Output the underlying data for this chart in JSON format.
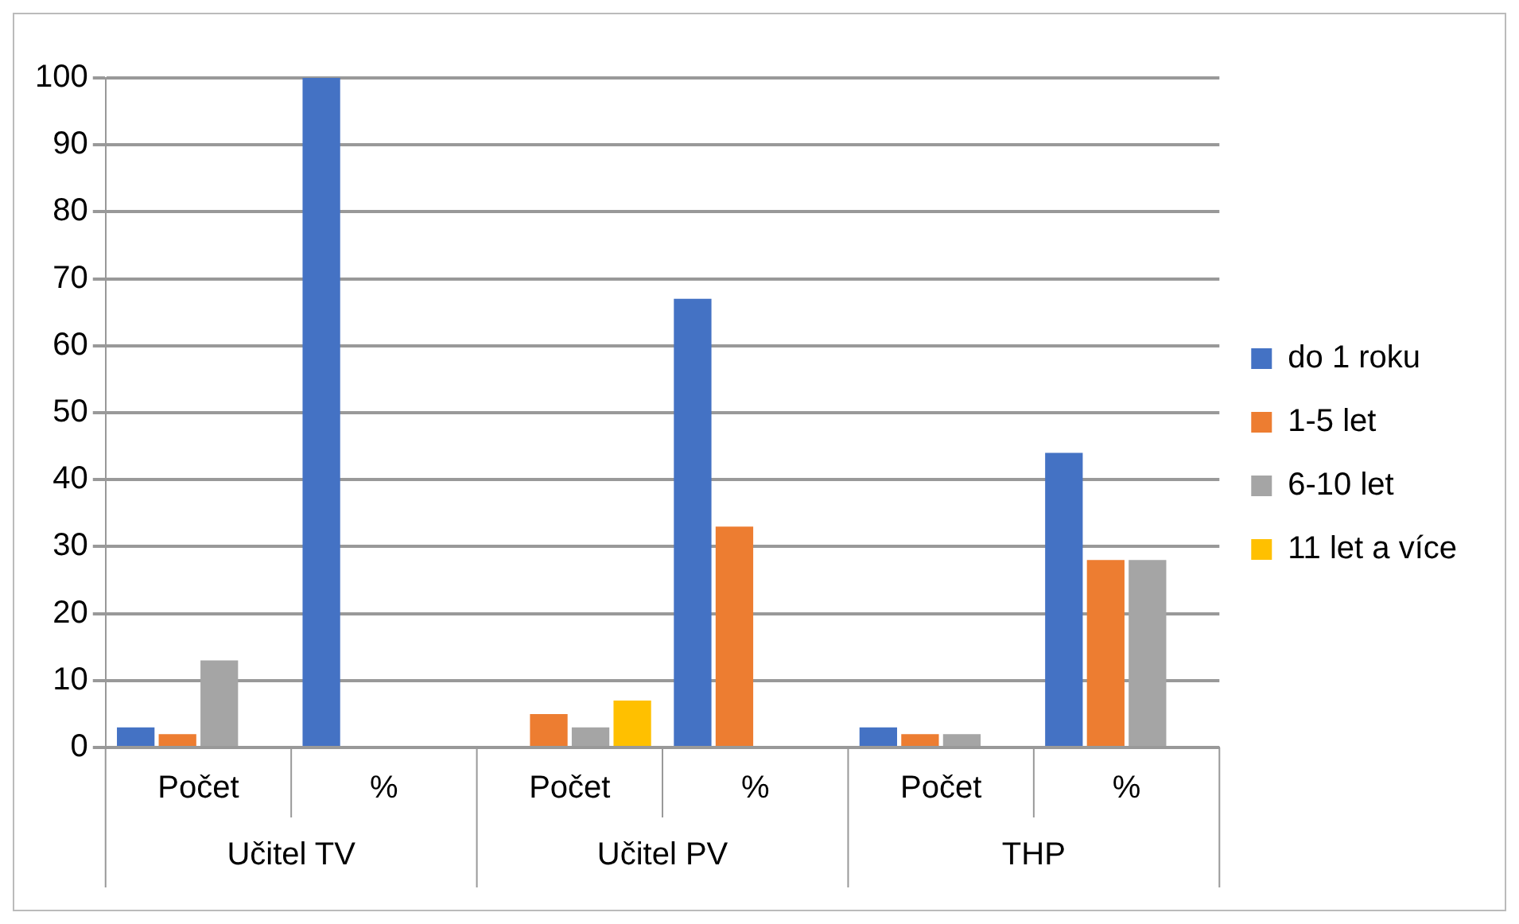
{
  "chart_data": {
    "type": "bar",
    "categories": [
      "Počet",
      "%",
      "Počet",
      "%",
      "Počet",
      "%"
    ],
    "series": [
      {
        "name": "do 1 roku",
        "color": "#4472c4",
        "values": [
          3,
          100,
          0,
          67,
          3,
          44
        ]
      },
      {
        "name": "1-5 let",
        "color": "#ed7d31",
        "values": [
          2,
          0,
          5,
          33,
          2,
          28
        ]
      },
      {
        "name": "6-10 let",
        "color": "#a5a5a5",
        "values": [
          13,
          0,
          3,
          0,
          2,
          28
        ]
      },
      {
        "name": "11 let a více",
        "color": "#ffc000",
        "values": [
          0,
          0,
          7,
          0,
          0,
          0
        ]
      }
    ],
    "annotations": [
      "Učitel TV",
      "Učitel PV",
      "THP"
    ],
    "ylim": [
      0,
      100
    ],
    "yticks": [
      0,
      10,
      20,
      30,
      40,
      50,
      60,
      70,
      80,
      90,
      100
    ],
    "grid": "y",
    "legend": "right"
  }
}
